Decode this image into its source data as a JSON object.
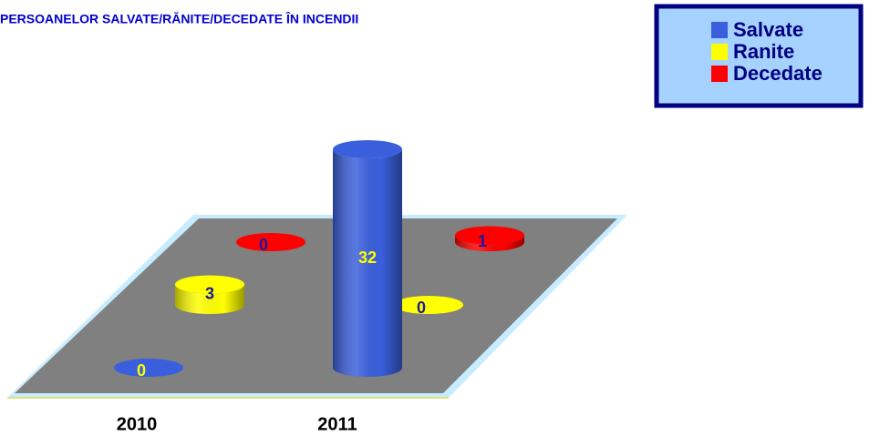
{
  "chart_data": {
    "type": "bar3d",
    "title": "PERSOANELOR SALVATE/RĂNITE/DECEDATE ÎN INCENDII",
    "categories": [
      "2010",
      "2011"
    ],
    "series": [
      {
        "name": "Salvate",
        "color": "#3a5fdc",
        "values": [
          0,
          32
        ]
      },
      {
        "name": "Ranite",
        "color": "#ffff00",
        "values": [
          3,
          0
        ]
      },
      {
        "name": "Decedate",
        "color": "#ff0000",
        "values": [
          0,
          1
        ]
      }
    ],
    "legend": "top-right"
  }
}
